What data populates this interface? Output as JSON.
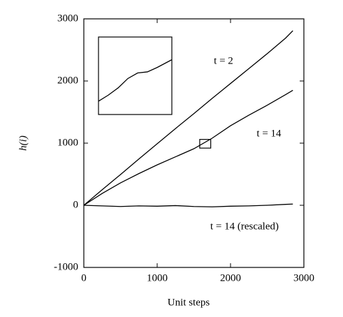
{
  "chart_data": [
    {
      "type": "line",
      "x_label": "Unit steps",
      "y_label": "h(i)",
      "x": [
        0,
        250,
        500,
        750,
        1000,
        1250,
        1500,
        1750,
        2000,
        2250,
        2500,
        2750,
        2850
      ],
      "series": [
        {
          "name": "t = 2",
          "color": "#000000",
          "values": [
            0,
            250,
            495,
            745,
            990,
            1235,
            1475,
            1720,
            1960,
            2200,
            2440,
            2690,
            2810
          ]
        },
        {
          "name": "t = 14",
          "color": "#000000",
          "values": [
            0,
            190,
            360,
            510,
            650,
            780,
            910,
            1080,
            1280,
            1450,
            1610,
            1780,
            1850
          ]
        },
        {
          "name": "t = 14 (rescaled)",
          "color": "#000000",
          "values": [
            0,
            -10,
            -20,
            -10,
            -15,
            -5,
            -20,
            -25,
            -15,
            -10,
            0,
            15,
            20
          ]
        }
      ],
      "xlim": [
        0,
        3000
      ],
      "ylim": [
        -1000,
        3000
      ],
      "xticks": [
        0,
        1000,
        2000,
        3000
      ],
      "yticks": [
        -1000,
        0,
        1000,
        2000,
        3000
      ]
    },
    {
      "type": "line",
      "x": [
        1580,
        1600,
        1620,
        1640,
        1660,
        1680,
        1700,
        1730
      ],
      "series": [
        {
          "color": "#000000",
          "values": [
            944,
            955,
            968,
            985,
            995,
            997,
            1005,
            1019
          ]
        }
      ],
      "xlim": [
        1580,
        1730
      ],
      "ylim": [
        920,
        1060
      ]
    }
  ]
}
